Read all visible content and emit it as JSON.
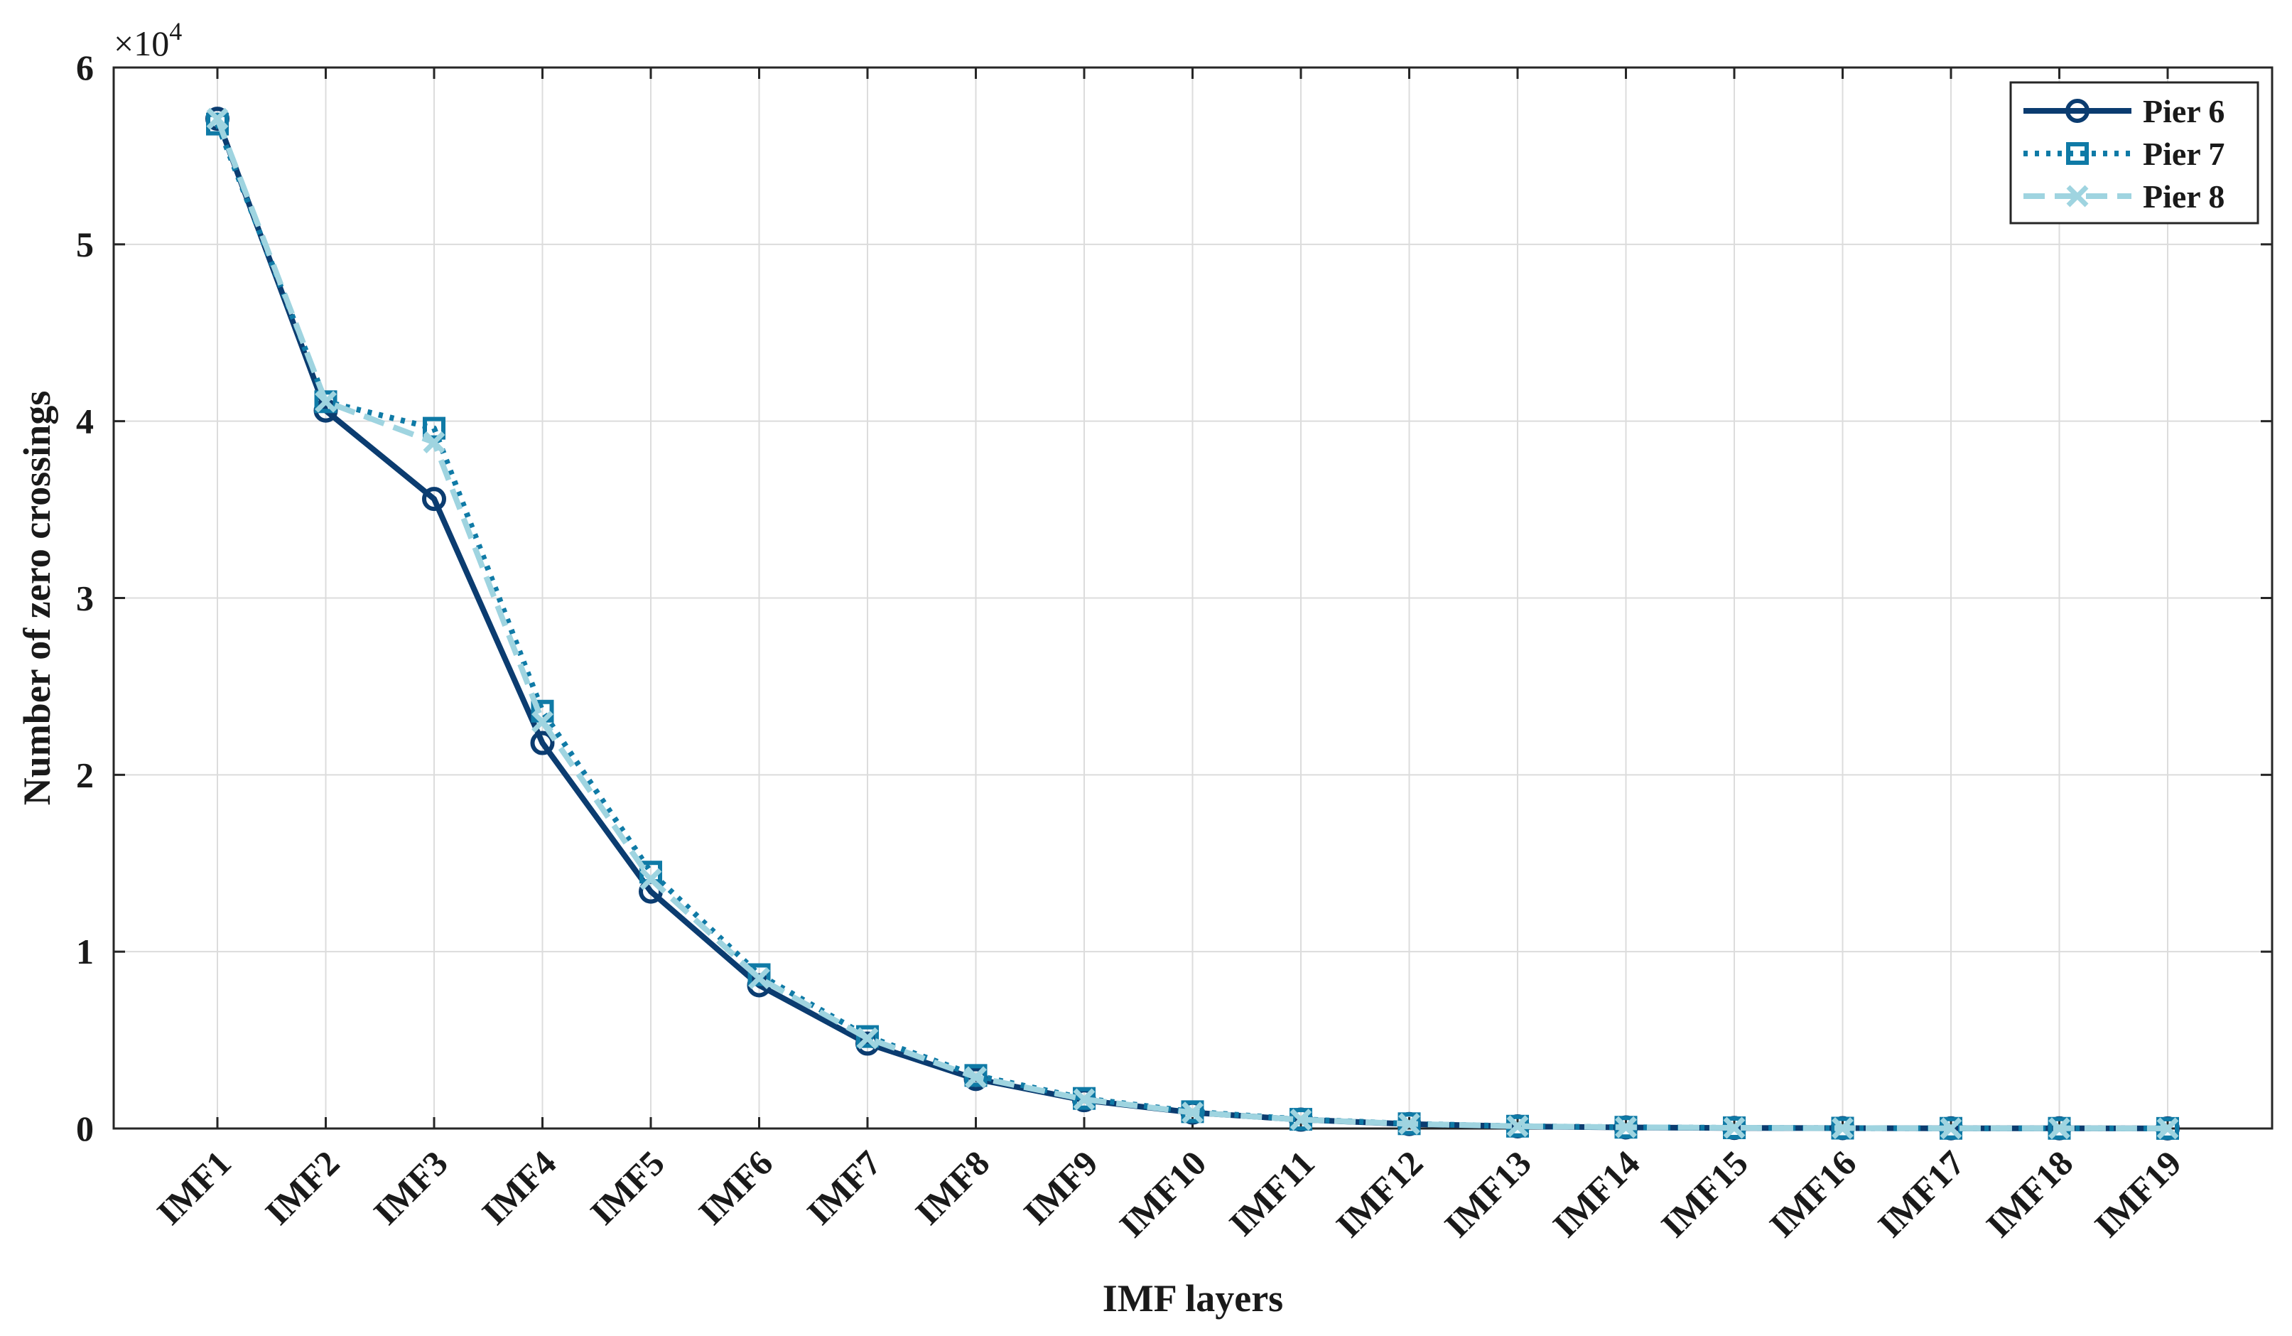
{
  "chart_data": {
    "type": "line",
    "xlabel": "IMF layers",
    "ylabel": "Number of zero crossings",
    "y_exponent_label": "×10",
    "y_exponent_power": "4",
    "categories": [
      "IMF1",
      "IMF2",
      "IMF3",
      "IMF4",
      "IMF5",
      "IMF6",
      "IMF7",
      "IMF8",
      "IMF9",
      "IMF10",
      "IMF11",
      "IMF12",
      "IMF13",
      "IMF14",
      "IMF15",
      "IMF16",
      "IMF17",
      "IMF18",
      "IMF19"
    ],
    "y_tick_labels": [
      "0",
      "1",
      "2",
      "3",
      "4",
      "5",
      "6"
    ],
    "ylim": [
      0,
      6
    ],
    "grid": true,
    "legend_position": "top-right",
    "series": [
      {
        "name": "Pier 6",
        "color": "#0b3c70",
        "line_style": "solid",
        "marker": "circle",
        "values": [
          5.71,
          4.06,
          3.56,
          2.18,
          1.34,
          0.81,
          0.48,
          0.28,
          0.16,
          0.09,
          0.05,
          0.025,
          0.012,
          0.006,
          0.003,
          0.002,
          0.001,
          0.001,
          0.0005
        ]
      },
      {
        "name": "Pier 7",
        "color": "#0f7aa6",
        "line_style": "dotted",
        "marker": "square",
        "values": [
          5.68,
          4.11,
          3.96,
          2.36,
          1.45,
          0.87,
          0.52,
          0.3,
          0.17,
          0.095,
          0.052,
          0.027,
          0.013,
          0.007,
          0.004,
          0.002,
          0.001,
          0.001,
          0.0005
        ]
      },
      {
        "name": "Pier 8",
        "color": "#9fd4e0",
        "line_style": "dashed",
        "marker": "x",
        "values": [
          5.71,
          4.11,
          3.88,
          2.3,
          1.41,
          0.85,
          0.51,
          0.29,
          0.165,
          0.09,
          0.05,
          0.026,
          0.013,
          0.007,
          0.004,
          0.002,
          0.001,
          0.001,
          0.0005
        ]
      }
    ]
  }
}
